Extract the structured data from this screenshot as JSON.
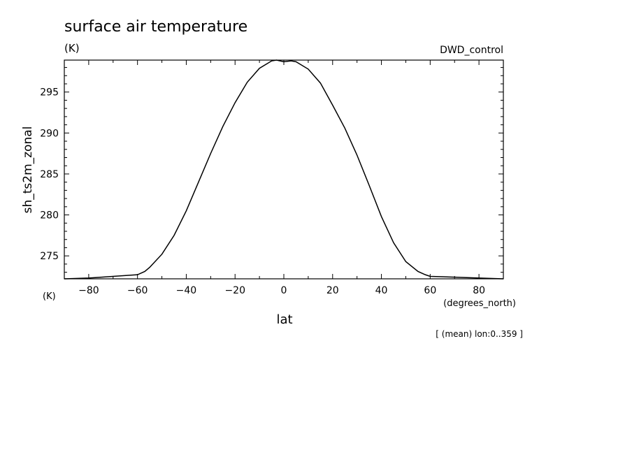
{
  "chart_data": {
    "type": "line",
    "title": "surface air temperature",
    "title_unit": "(K)",
    "dataset_label": "DWD_control",
    "ylabel": "sh_ts2m_zonal",
    "y_unit": "(K)",
    "xlabel": "lat",
    "x_unit": "(degrees_north)",
    "footer": "[ (mean) lon:0..359 ]",
    "xlim": [
      -90,
      90
    ],
    "ylim": [
      272.2,
      298.9
    ],
    "x_ticks": [
      -80,
      -60,
      -40,
      -20,
      0,
      20,
      40,
      60,
      80
    ],
    "y_ticks": [
      275,
      280,
      285,
      290,
      295
    ],
    "grid": false,
    "series": [
      {
        "x": [
          -90,
          -80,
          -70,
          -60,
          -57,
          -55,
          -50,
          -45,
          -40,
          -35,
          -30,
          -25,
          -20,
          -15,
          -10,
          -5,
          -3,
          0,
          3,
          5,
          10,
          15,
          20,
          25,
          30,
          35,
          40,
          45,
          50,
          55,
          58,
          60,
          70,
          80,
          90
        ],
        "values": [
          272.2,
          272.3,
          272.5,
          272.7,
          273.1,
          273.6,
          275.2,
          277.5,
          280.5,
          284.0,
          287.5,
          290.8,
          293.7,
          296.2,
          297.9,
          298.8,
          298.9,
          298.7,
          298.8,
          298.7,
          297.8,
          296.1,
          293.4,
          290.6,
          287.3,
          283.6,
          279.8,
          276.6,
          274.3,
          273.1,
          272.7,
          272.5,
          272.4,
          272.3,
          272.2
        ]
      }
    ]
  }
}
